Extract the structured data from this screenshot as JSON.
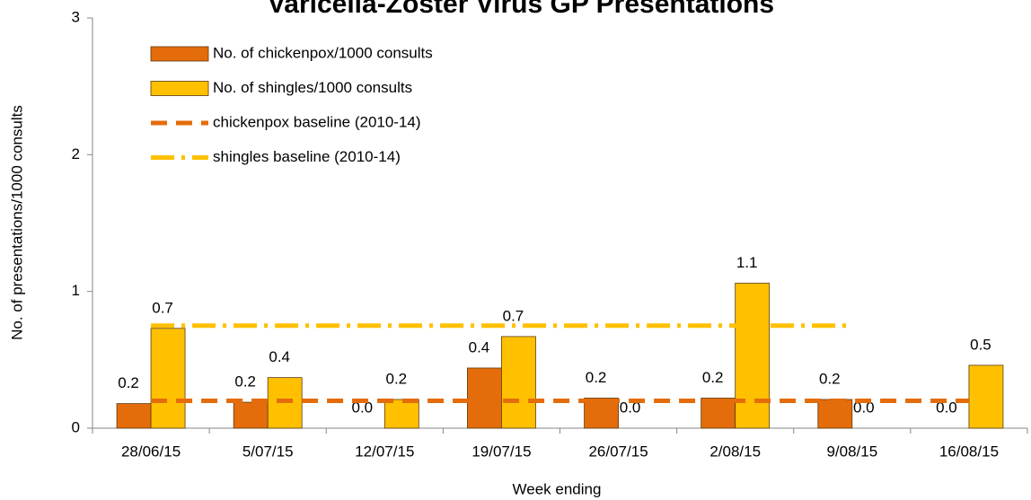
{
  "chart_data": {
    "type": "bar",
    "title": "Varicella-Zoster Virus GP Presentations",
    "xlabel": "Week ending",
    "ylabel": "No. of presentations/1000 consults",
    "categories": [
      "28/06/15",
      "5/07/15",
      "12/07/15",
      "19/07/15",
      "26/07/15",
      "2/08/15",
      "9/08/15",
      "16/08/15"
    ],
    "ylim": [
      0,
      3
    ],
    "yticks": [
      0,
      1,
      2,
      3
    ],
    "series": [
      {
        "name": "No. of chickenpox/1000 consults",
        "type": "bar",
        "color": "#e46c0a",
        "values": [
          0.18,
          0.19,
          0.0,
          0.44,
          0.22,
          0.22,
          0.21,
          0.0
        ],
        "value_labels": [
          "0.2",
          "0.2",
          "0.0",
          "0.4",
          "0.2",
          "0.2",
          "0.2",
          "0.0"
        ]
      },
      {
        "name": "No. of shingles/1000 consults",
        "type": "bar",
        "color": "#ffc000",
        "values": [
          0.73,
          0.37,
          0.21,
          0.67,
          0.0,
          1.06,
          0.0,
          0.46
        ],
        "value_labels": [
          "0.7",
          "0.4",
          "0.2",
          "0.7",
          "0.0",
          "1.1",
          "0.0",
          "0.5"
        ]
      },
      {
        "name": "chickenpox baseline (2010-14)",
        "type": "line",
        "dash": "dash",
        "color": "#e46c0a",
        "values": [
          0.2,
          0.2,
          0.2,
          0.2,
          0.2,
          0.2,
          0.2,
          0.2
        ]
      },
      {
        "name": "shingles baseline (2010-14)",
        "type": "line",
        "dash": "dash-dot",
        "color": "#ffc000",
        "values": [
          0.75,
          0.75,
          0.75,
          0.75,
          0.75,
          0.75,
          0.75,
          null
        ]
      }
    ]
  }
}
